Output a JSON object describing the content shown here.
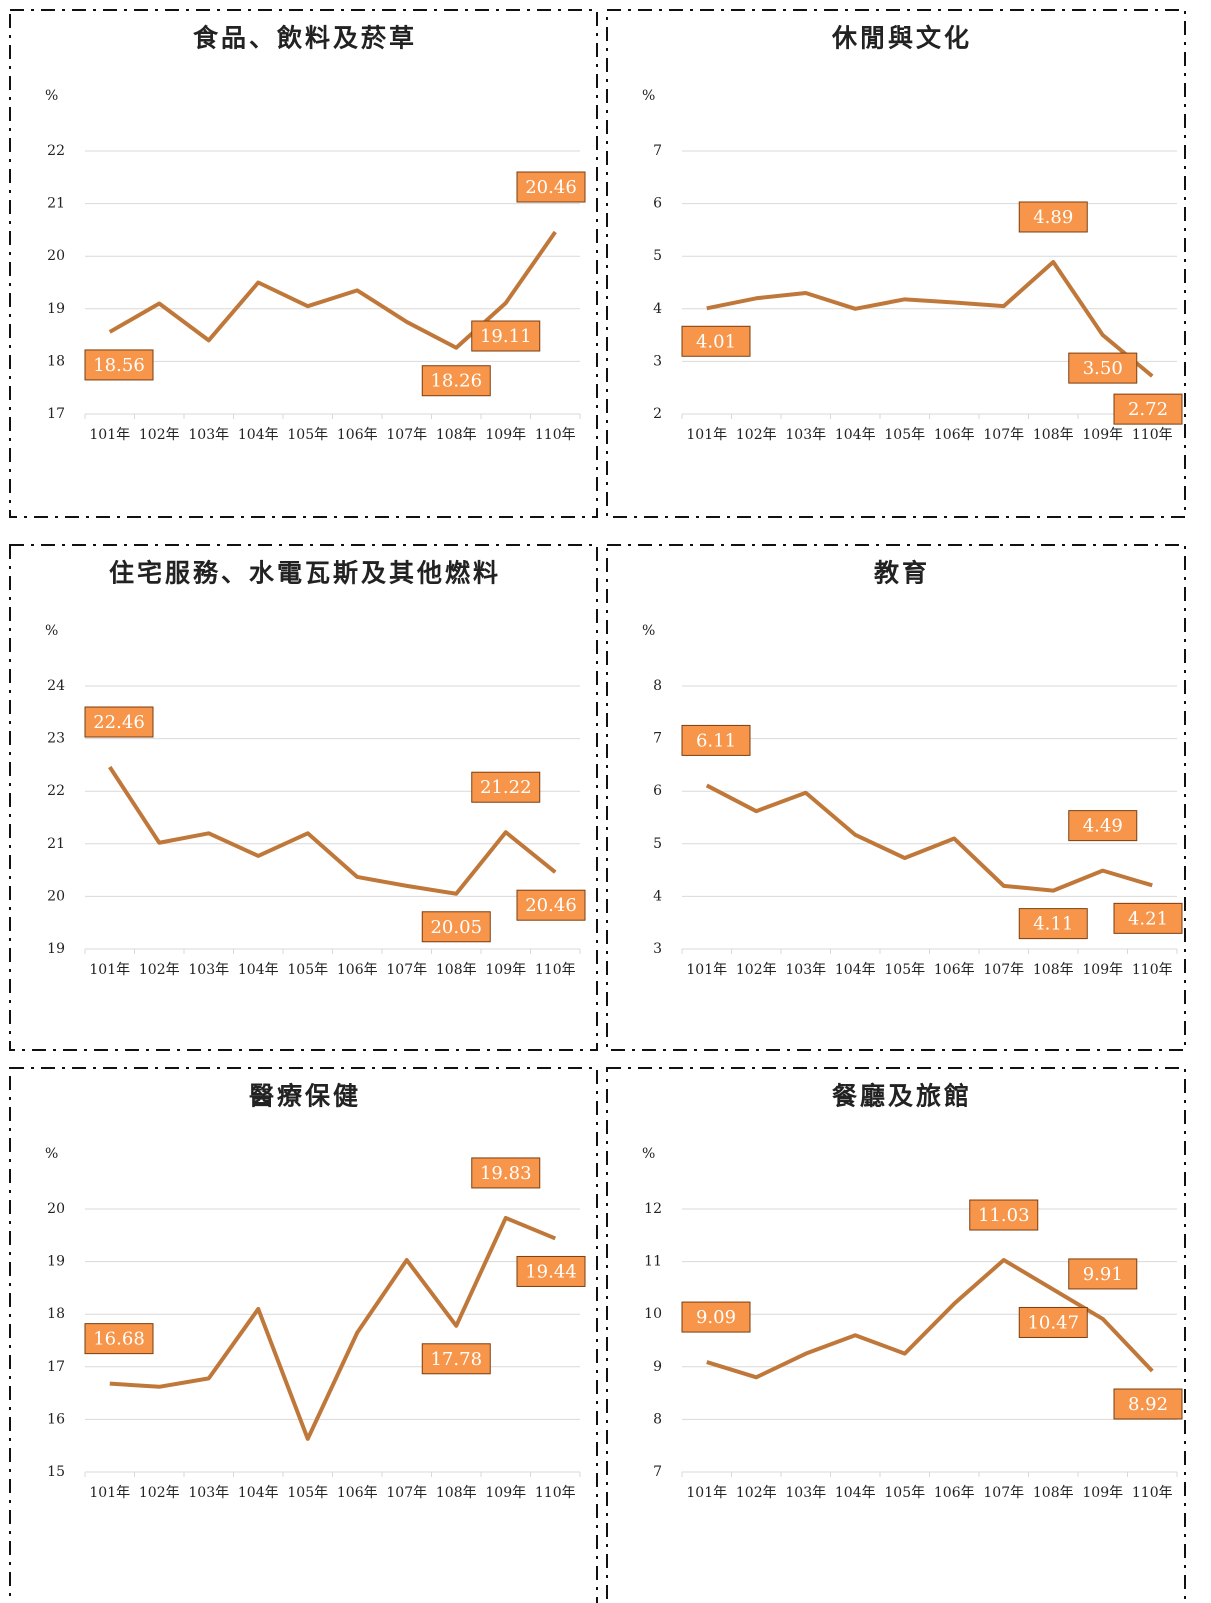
{
  "chart_data": [
    {
      "type": "line",
      "title": "食品、飲料及菸草",
      "y_label": "%",
      "categories": [
        "101年",
        "102年",
        "103年",
        "104年",
        "105年",
        "106年",
        "107年",
        "108年",
        "109年",
        "110年"
      ],
      "values": [
        18.56,
        19.1,
        18.4,
        19.5,
        19.05,
        19.35,
        18.75,
        18.26,
        19.11,
        20.46
      ],
      "value_labels": [
        "18.56",
        null,
        null,
        null,
        null,
        null,
        null,
        "18.26",
        "19.11",
        "20.46"
      ],
      "color": "#c0783a",
      "label_color": "#f7954a",
      "ylim": [
        17,
        22
      ],
      "yticks": [
        17,
        18,
        19,
        20,
        21,
        22
      ],
      "grid": true
    },
    {
      "type": "line",
      "title": "休閒與文化",
      "y_label": "%",
      "categories": [
        "101年",
        "102年",
        "103年",
        "104年",
        "105年",
        "106年",
        "107年",
        "108年",
        "109年",
        "110年"
      ],
      "values": [
        4.01,
        4.2,
        4.3,
        4.0,
        4.18,
        4.12,
        4.05,
        4.89,
        3.5,
        2.72
      ],
      "value_labels": [
        "4.01",
        null,
        null,
        null,
        null,
        null,
        null,
        "4.89",
        "3.50",
        "2.72"
      ],
      "color": "#c0783a",
      "label_color": "#f7954a",
      "ylim": [
        2,
        7
      ],
      "yticks": [
        2,
        3,
        4,
        5,
        6,
        7
      ],
      "grid": true
    },
    {
      "type": "line",
      "title": "住宅服務、水電瓦斯及其他燃料",
      "y_label": "%",
      "categories": [
        "101年",
        "102年",
        "103年",
        "104年",
        "105年",
        "106年",
        "107年",
        "108年",
        "109年",
        "110年"
      ],
      "values": [
        22.46,
        21.02,
        21.2,
        20.77,
        21.2,
        20.37,
        20.2,
        20.05,
        21.22,
        20.46
      ],
      "value_labels": [
        "22.46",
        null,
        null,
        null,
        null,
        null,
        null,
        "20.05",
        "21.22",
        "20.46"
      ],
      "color": "#c0783a",
      "label_color": "#f7954a",
      "ylim": [
        19,
        24
      ],
      "yticks": [
        19,
        20,
        21,
        22,
        23,
        24
      ],
      "grid": true
    },
    {
      "type": "line",
      "title": "教育",
      "y_label": "%",
      "categories": [
        "101年",
        "102年",
        "103年",
        "104年",
        "105年",
        "106年",
        "107年",
        "108年",
        "109年",
        "110年"
      ],
      "values": [
        6.11,
        5.62,
        5.97,
        5.17,
        4.73,
        5.1,
        4.2,
        4.11,
        4.49,
        4.21
      ],
      "value_labels": [
        "6.11",
        null,
        null,
        null,
        null,
        null,
        null,
        "4.11",
        "4.49",
        "4.21"
      ],
      "color": "#c0783a",
      "label_color": "#f7954a",
      "ylim": [
        3,
        8
      ],
      "yticks": [
        3,
        4,
        5,
        6,
        7,
        8
      ],
      "grid": true
    },
    {
      "type": "line",
      "title": "醫療保健",
      "y_label": "%",
      "categories": [
        "101年",
        "102年",
        "103年",
        "104年",
        "105年",
        "106年",
        "107年",
        "108年",
        "109年",
        "110年"
      ],
      "values": [
        16.68,
        16.62,
        16.78,
        18.1,
        15.63,
        17.65,
        19.03,
        17.78,
        19.83,
        19.44
      ],
      "value_labels": [
        "16.68",
        null,
        null,
        null,
        null,
        null,
        null,
        "17.78",
        "19.83",
        "19.44"
      ],
      "color": "#c0783a",
      "label_color": "#f7954a",
      "ylim": [
        15,
        20
      ],
      "yticks": [
        15,
        16,
        17,
        18,
        19,
        20
      ],
      "grid": true
    },
    {
      "type": "line",
      "title": "餐廳及旅館",
      "y_label": "%",
      "categories": [
        "101年",
        "102年",
        "103年",
        "104年",
        "105年",
        "106年",
        "107年",
        "108年",
        "109年",
        "110年"
      ],
      "values": [
        9.09,
        8.8,
        9.25,
        9.6,
        9.25,
        10.2,
        11.03,
        10.47,
        9.91,
        8.92
      ],
      "value_labels": [
        "9.09",
        null,
        null,
        null,
        null,
        null,
        "11.03",
        "10.47",
        "9.91",
        "8.92"
      ],
      "color": "#c0783a",
      "label_color": "#f7954a",
      "ylim": [
        7,
        12
      ],
      "yticks": [
        7,
        8,
        9,
        10,
        11,
        12
      ],
      "grid": true
    }
  ]
}
